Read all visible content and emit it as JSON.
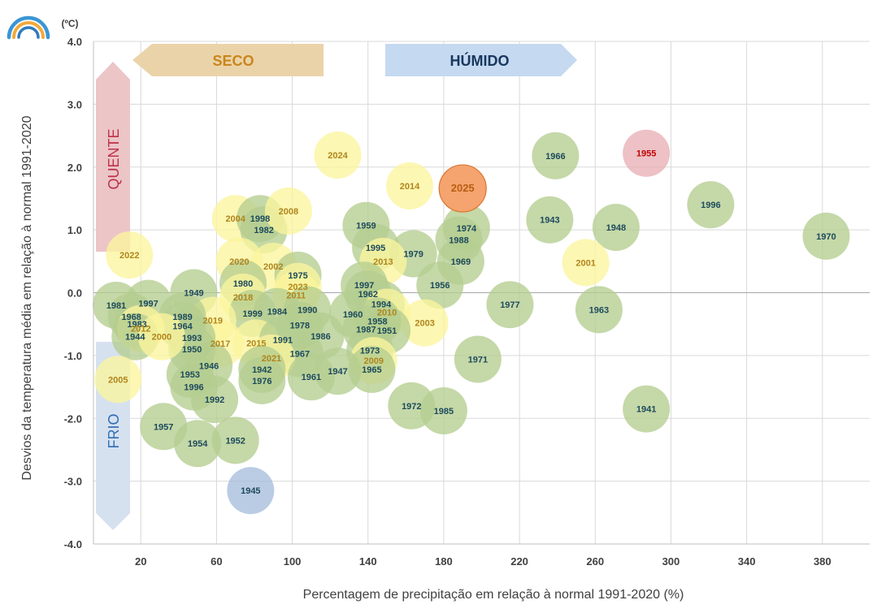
{
  "chart_data": {
    "type": "scatter",
    "title": "",
    "xlabel": "Percentagem de precipitação em relação à normal 1991-2020 (%)",
    "ylabel": "Desvios da temperatura média em relação à normal 1991-2020",
    "y_unit": "(ºC)",
    "xlim": [
      -5,
      405
    ],
    "ylim": [
      -4.0,
      4.0
    ],
    "x_ticks": [
      20,
      60,
      100,
      140,
      180,
      220,
      260,
      300,
      340,
      380
    ],
    "y_ticks": [
      4.0,
      3.0,
      2.0,
      1.0,
      0.0,
      -1.0,
      -2.0,
      -3.0,
      -4.0
    ],
    "y_tick_labels": [
      "4.0",
      "3.0",
      "2.0",
      "1.0",
      "0.0",
      "-1.0",
      "-2.0",
      "-3.0",
      "-4.0"
    ],
    "grid": true,
    "zero_line": true,
    "annotations": {
      "dry": "SECO",
      "wet": "HÚMIDO",
      "hot": "QUENTE",
      "cold": "FRIO"
    },
    "colors": {
      "green": "#b5cd8f",
      "yellow": "#fbf59e",
      "orange": "#f5a36f",
      "orange_stroke": "#d9772f",
      "red": "#e8b0b5",
      "blue": "#a7bedd",
      "label_teal": "#1d4a5c",
      "label_gold": "#b0851c",
      "label_red": "#c00000",
      "label_orange": "#b85f12",
      "dry_arrow": "#ebd3a9",
      "wet_arrow": "#c5d9f0",
      "hot_arrow": "#ecc5c7",
      "cold_arrow": "#d6e1f0",
      "dry_text": "#c9861b",
      "wet_text": "#17375e",
      "hot_text": "#c0314a",
      "cold_text": "#2f6eb5",
      "grid": "#d9d9d9",
      "axis_text": "#404040",
      "logo": [
        "#3a96d4",
        "#f2a93b",
        "#2f7bbd",
        "#7dc4ec"
      ]
    },
    "points": [
      {
        "year": "1970",
        "x": 382,
        "y": 0.9,
        "c": "green"
      },
      {
        "year": "1996",
        "x": 321,
        "y": 1.4,
        "c": "green"
      },
      {
        "year": "1955",
        "x": 287,
        "y": 2.22,
        "c": "red"
      },
      {
        "year": "1941",
        "x": 287,
        "y": -1.85,
        "c": "green"
      },
      {
        "year": "1948",
        "x": 271,
        "y": 1.04,
        "c": "green"
      },
      {
        "year": "1963",
        "x": 262,
        "y": -0.27,
        "c": "green"
      },
      {
        "year": "2001",
        "x": 255,
        "y": 0.48,
        "c": "yellow"
      },
      {
        "year": "1966",
        "x": 239,
        "y": 2.18,
        "c": "green"
      },
      {
        "year": "1943",
        "x": 236,
        "y": 1.16,
        "c": "green"
      },
      {
        "year": "1977",
        "x": 215,
        "y": -0.19,
        "c": "green"
      },
      {
        "year": "1971",
        "x": 198,
        "y": -1.06,
        "c": "green"
      },
      {
        "year": "1974",
        "x": 192,
        "y": 1.03,
        "c": "green"
      },
      {
        "year": "1988",
        "x": 188,
        "y": 0.84,
        "c": "green"
      },
      {
        "year": "1969",
        "x": 189,
        "y": 0.5,
        "c": "green"
      },
      {
        "year": "1985",
        "x": 180,
        "y": -1.88,
        "c": "green"
      },
      {
        "year": "1956",
        "x": 178,
        "y": 0.12,
        "c": "green"
      },
      {
        "year": "1972",
        "x": 163,
        "y": -1.8,
        "c": "green"
      },
      {
        "year": "1979",
        "x": 164,
        "y": 0.62,
        "c": "green"
      },
      {
        "year": "2014",
        "x": 162,
        "y": 1.7,
        "c": "yellow"
      },
      {
        "year": "2003",
        "x": 170,
        "y": -0.48,
        "c": "yellow"
      },
      {
        "year": "2024",
        "x": 124,
        "y": 2.19,
        "c": "yellow"
      },
      {
        "year": "1959",
        "x": 139,
        "y": 1.07,
        "c": "green"
      },
      {
        "year": "1995",
        "x": 144,
        "y": 0.72,
        "c": "green"
      },
      {
        "year": "2013",
        "x": 148,
        "y": 0.5,
        "c": "yellow"
      },
      {
        "year": "1997",
        "x": 138,
        "y": 0.12,
        "c": "green"
      },
      {
        "year": "1962",
        "x": 140,
        "y": -0.02,
        "c": "green"
      },
      {
        "year": "1994",
        "x": 147,
        "y": -0.18,
        "c": "green"
      },
      {
        "year": "1960",
        "x": 132,
        "y": -0.34,
        "c": "green"
      },
      {
        "year": "2010",
        "x": 150,
        "y": -0.31,
        "c": "yellow"
      },
      {
        "year": "1958",
        "x": 145,
        "y": -0.45,
        "c": "green"
      },
      {
        "year": "1987",
        "x": 139,
        "y": -0.58,
        "c": "green"
      },
      {
        "year": "1951",
        "x": 150,
        "y": -0.6,
        "c": "green"
      },
      {
        "year": "1973",
        "x": 141,
        "y": -0.92,
        "c": "green"
      },
      {
        "year": "2009",
        "x": 143,
        "y": -1.08,
        "c": "yellow"
      },
      {
        "year": "1965",
        "x": 142,
        "y": -1.22,
        "c": "green"
      },
      {
        "year": "2025",
        "x": 190,
        "y": 1.66,
        "c": "orange"
      },
      {
        "year": "2004",
        "x": 70,
        "y": 1.18,
        "c": "yellow"
      },
      {
        "year": "1998",
        "x": 83,
        "y": 1.18,
        "c": "green"
      },
      {
        "year": "1982",
        "x": 85,
        "y": 1.0,
        "c": "green"
      },
      {
        "year": "2008",
        "x": 98,
        "y": 1.3,
        "c": "yellow"
      },
      {
        "year": "2020",
        "x": 72,
        "y": 0.5,
        "c": "yellow"
      },
      {
        "year": "2002",
        "x": 90,
        "y": 0.42,
        "c": "yellow"
      },
      {
        "year": "1975",
        "x": 103,
        "y": 0.28,
        "c": "green"
      },
      {
        "year": "1980",
        "x": 74,
        "y": 0.15,
        "c": "green"
      },
      {
        "year": "2023",
        "x": 103,
        "y": 0.1,
        "c": "yellow"
      },
      {
        "year": "2018",
        "x": 74,
        "y": -0.07,
        "c": "yellow"
      },
      {
        "year": "2011",
        "x": 102,
        "y": -0.04,
        "c": "yellow"
      },
      {
        "year": "1999",
        "x": 79,
        "y": -0.33,
        "c": "green"
      },
      {
        "year": "1984",
        "x": 92,
        "y": -0.3,
        "c": "green"
      },
      {
        "year": "1990",
        "x": 108,
        "y": -0.27,
        "c": "green"
      },
      {
        "year": "1978",
        "x": 104,
        "y": -0.52,
        "c": "green"
      },
      {
        "year": "1986",
        "x": 115,
        "y": -0.69,
        "c": "green"
      },
      {
        "year": "2015",
        "x": 81,
        "y": -0.8,
        "c": "yellow"
      },
      {
        "year": "1991",
        "x": 95,
        "y": -0.75,
        "c": "green"
      },
      {
        "year": "1967",
        "x": 104,
        "y": -0.97,
        "c": "green"
      },
      {
        "year": "2021",
        "x": 89,
        "y": -1.04,
        "c": "yellow"
      },
      {
        "year": "1942",
        "x": 84,
        "y": -1.22,
        "c": "green"
      },
      {
        "year": "1976",
        "x": 84,
        "y": -1.4,
        "c": "green"
      },
      {
        "year": "1961",
        "x": 110,
        "y": -1.34,
        "c": "green"
      },
      {
        "year": "1947",
        "x": 124,
        "y": -1.25,
        "c": "green"
      },
      {
        "year": "1949",
        "x": 48,
        "y": 0.0,
        "c": "green"
      },
      {
        "year": "2019",
        "x": 58,
        "y": -0.44,
        "c": "yellow"
      },
      {
        "year": "2017",
        "x": 62,
        "y": -0.81,
        "c": "yellow"
      },
      {
        "year": "1989",
        "x": 42,
        "y": -0.38,
        "c": "green"
      },
      {
        "year": "1964",
        "x": 42,
        "y": -0.53,
        "c": "green"
      },
      {
        "year": "1993",
        "x": 47,
        "y": -0.72,
        "c": "green"
      },
      {
        "year": "1950",
        "x": 47,
        "y": -0.9,
        "c": "green"
      },
      {
        "year": "1946",
        "x": 56,
        "y": -1.16,
        "c": "green"
      },
      {
        "year": "1953",
        "x": 46,
        "y": -1.3,
        "c": "green"
      },
      {
        "year": "1996",
        "x": 48,
        "y": -1.5,
        "c": "green"
      },
      {
        "year": "1992",
        "x": 59,
        "y": -1.7,
        "c": "green"
      },
      {
        "year": "1957",
        "x": 32,
        "y": -2.13,
        "c": "green"
      },
      {
        "year": "1954",
        "x": 50,
        "y": -2.4,
        "c": "green"
      },
      {
        "year": "1952",
        "x": 70,
        "y": -2.35,
        "c": "green"
      },
      {
        "year": "1945",
        "x": 78,
        "y": -3.15,
        "c": "blue"
      },
      {
        "year": "1997",
        "x": 24,
        "y": -0.17,
        "c": "green"
      },
      {
        "year": "1981",
        "x": 7,
        "y": -0.2,
        "c": "green"
      },
      {
        "year": "1968",
        "x": 15,
        "y": -0.38,
        "c": "green"
      },
      {
        "year": "1983",
        "x": 18,
        "y": -0.5,
        "c": "green"
      },
      {
        "year": "2012",
        "x": 20,
        "y": -0.57,
        "c": "yellow"
      },
      {
        "year": "1944",
        "x": 17,
        "y": -0.7,
        "c": "green"
      },
      {
        "year": "2000",
        "x": 31,
        "y": -0.7,
        "c": "yellow"
      },
      {
        "year": "2022",
        "x": 14,
        "y": 0.6,
        "c": "yellow"
      },
      {
        "year": "2005",
        "x": 8,
        "y": -1.38,
        "c": "yellow"
      }
    ]
  }
}
